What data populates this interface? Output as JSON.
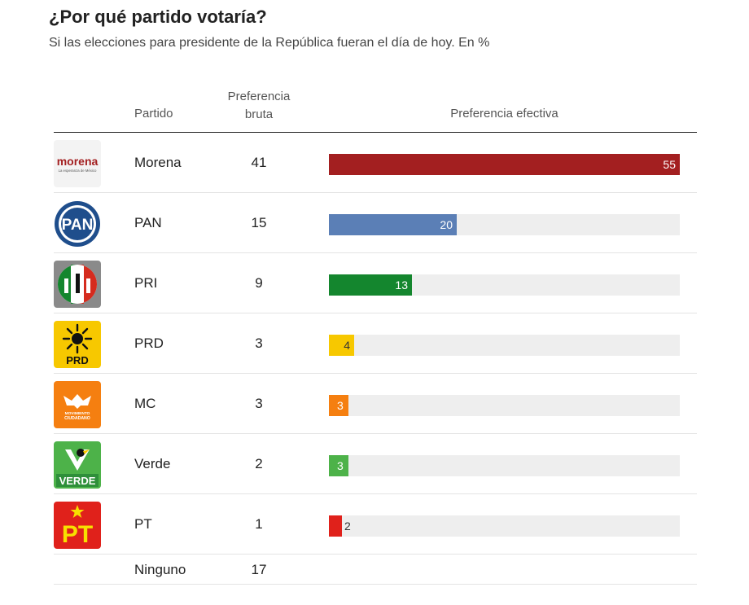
{
  "title": "¿Por qué partido votaría?",
  "subtitle": "Si las elecciones para presidente de la República fueran el día de hoy. En %",
  "headers": {
    "partido": "Partido",
    "bruta_line1": "Preferencia",
    "bruta_line2": "bruta",
    "efectiva": "Preferencia efectiva"
  },
  "chart_data": {
    "type": "bar",
    "title": "¿Por qué partido votaría?",
    "subtitle": "Si las elecciones para presidente de la República fueran el día de hoy. En %",
    "categories": [
      "Morena",
      "PAN",
      "PRI",
      "PRD",
      "MC",
      "Verde",
      "PT",
      "Ninguno"
    ],
    "series": [
      {
        "name": "Preferencia bruta",
        "values": [
          41,
          15,
          9,
          3,
          3,
          2,
          1,
          17
        ]
      },
      {
        "name": "Preferencia efectiva",
        "values": [
          55,
          20,
          13,
          4,
          3,
          3,
          2,
          null
        ]
      }
    ],
    "xlim": [
      0,
      55
    ],
    "colors": [
      "#a31f20",
      "#5b7fb6",
      "#14862e",
      "#f7c800",
      "#f57f10",
      "#4db249",
      "#e0211b"
    ]
  },
  "logos": {
    "morena_text": "morena",
    "morena_tagline": "La esperanza de México",
    "pan_text": "PAN",
    "prd_text": "PRD",
    "mc_text1": "MOVIMIENTO",
    "mc_text2": "CIUDADANO",
    "verde_text": "VERDE",
    "pt_text": "PT"
  },
  "icons": [
    "morena-logo-icon",
    "pan-logo-icon",
    "pri-logo-icon",
    "prd-logo-icon",
    "mc-logo-icon",
    "verde-logo-icon",
    "pt-logo-icon"
  ]
}
